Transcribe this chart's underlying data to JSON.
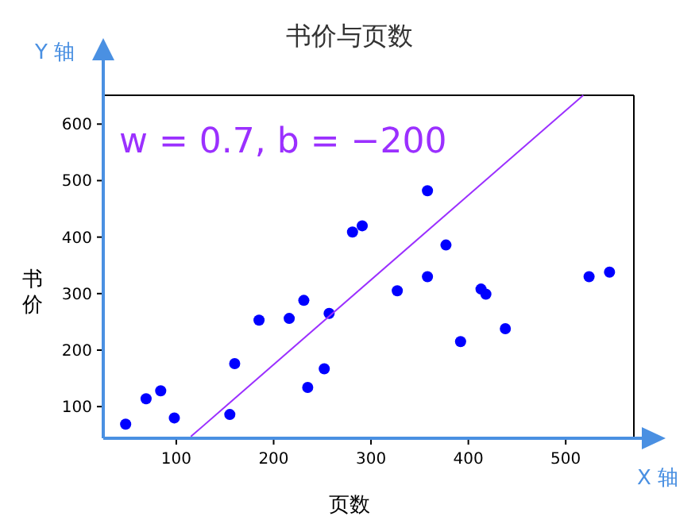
{
  "chart_data": {
    "type": "scatter",
    "title": "书价与页数",
    "xlabel": "页数",
    "ylabel": "书价",
    "annotations": [
      "w = 0.7, b = −200",
      "Y 轴",
      "X 轴"
    ],
    "xlim": [
      25,
      570
    ],
    "ylim": [
      44,
      651
    ],
    "xticks": [
      100,
      200,
      300,
      400,
      500
    ],
    "yticks": [
      100,
      200,
      300,
      400,
      500,
      600
    ],
    "grid": false,
    "marker": "circle",
    "series": [
      {
        "color": "#0000ff",
        "x": [
          48,
          69,
          84,
          98,
          155,
          160,
          185,
          216,
          231,
          235,
          257,
          252,
          281,
          291,
          327,
          358,
          358,
          377,
          392,
          413,
          418,
          438,
          524,
          545
        ],
        "values": [
          69,
          114,
          128,
          80,
          86,
          176,
          253,
          256,
          288,
          134,
          265,
          167,
          409,
          420,
          305,
          482,
          330,
          386,
          215,
          308,
          299,
          238,
          330,
          338
        ]
      },
      {
        "type": "line",
        "color": "#9b30ff",
        "marker": "none",
        "line_style": "solid",
        "x": [
          115,
          518
        ],
        "values": [
          47,
          651
        ]
      }
    ]
  }
}
